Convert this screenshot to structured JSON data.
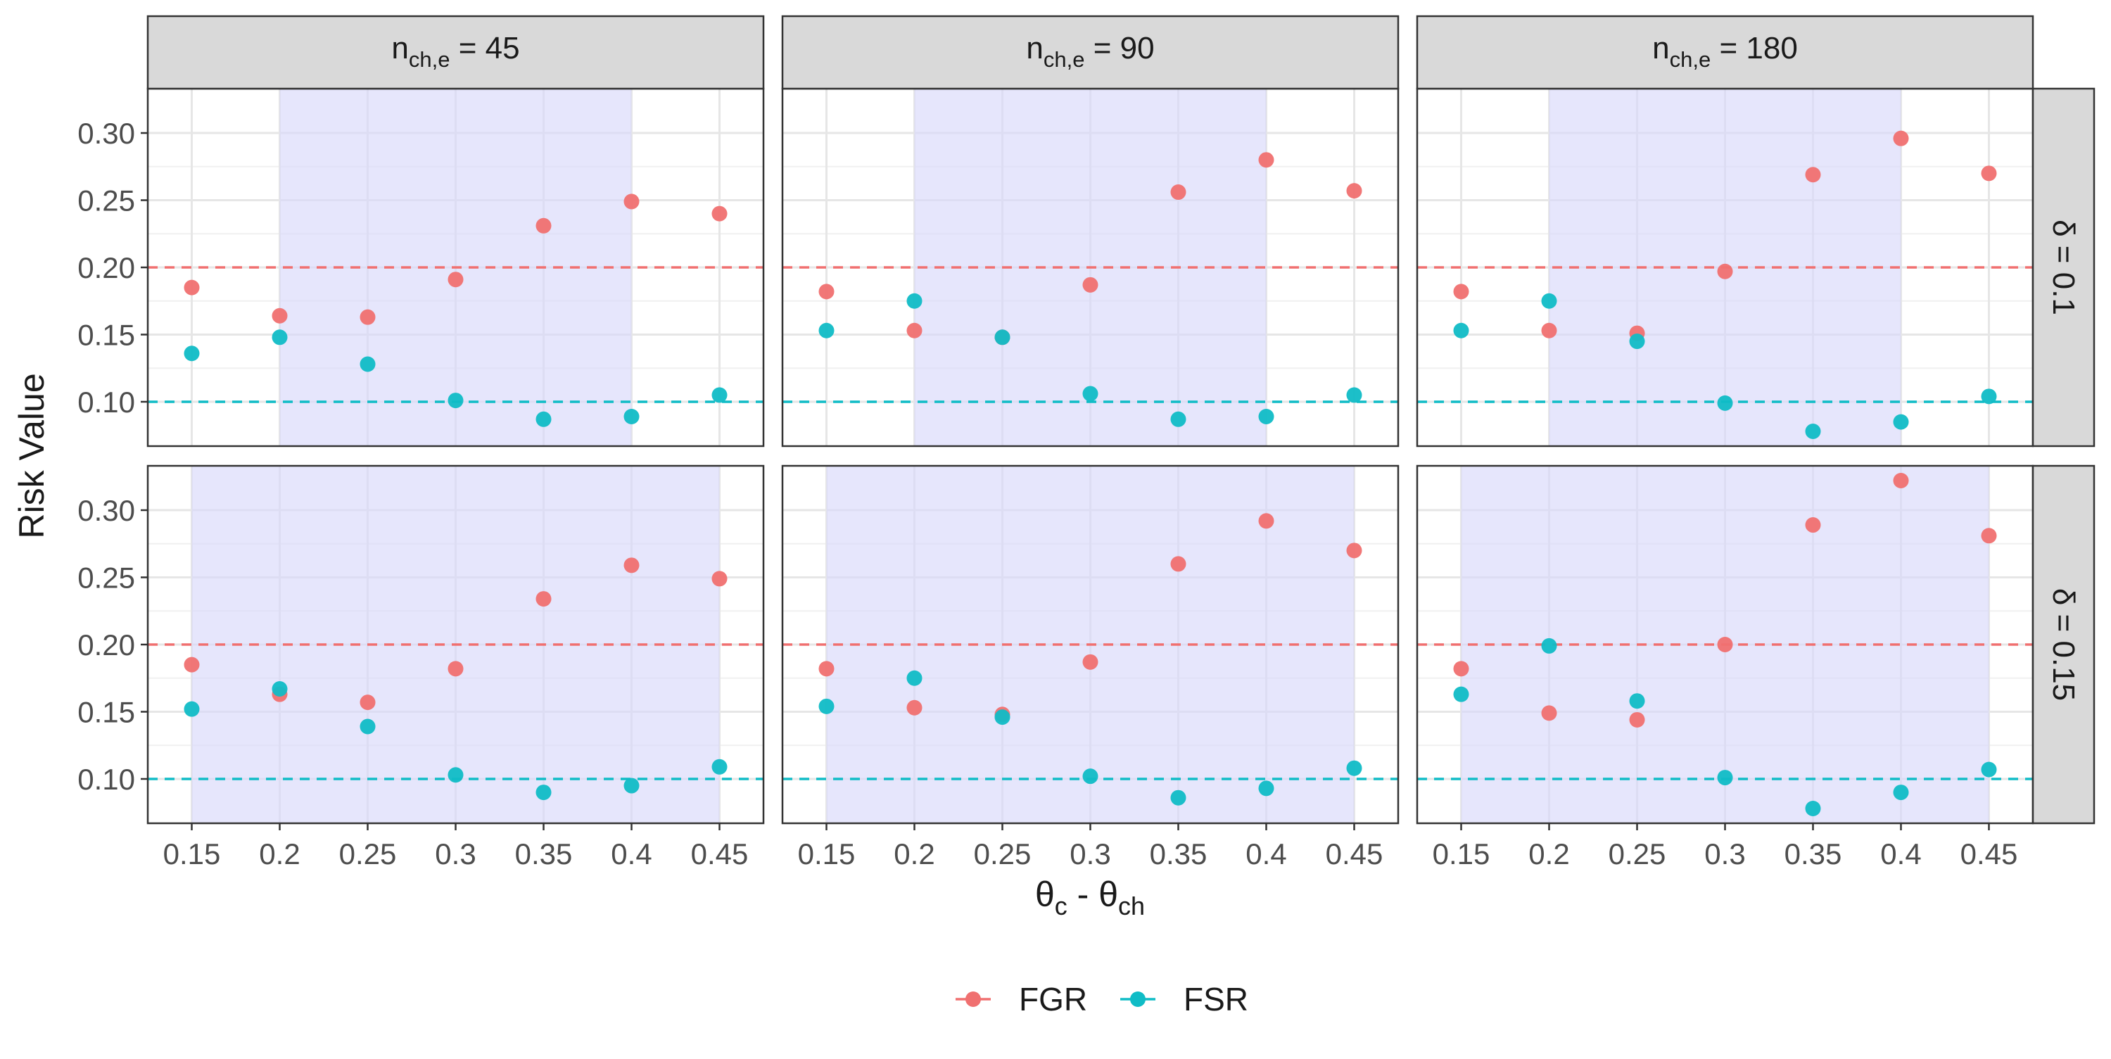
{
  "chart_data": {
    "type": "scatter",
    "ylabel": "Risk Value",
    "xlabel": {
      "main": "θ",
      "sub1": "c",
      "mid": " - θ",
      "sub2": "ch"
    },
    "x_ticks": [
      "0.15",
      "0.2",
      "0.25",
      "0.3",
      "0.35",
      "0.4",
      "0.45"
    ],
    "x_values": [
      0.15,
      0.2,
      0.25,
      0.3,
      0.35,
      0.4,
      0.45
    ],
    "y_ticks": [
      "0.10",
      "0.15",
      "0.20",
      "0.25",
      "0.30"
    ],
    "y_tick_values": [
      0.1,
      0.15,
      0.2,
      0.25,
      0.3
    ],
    "xlim": [
      0.125,
      0.475
    ],
    "ylim": [
      0.067,
      0.333
    ],
    "grid": true,
    "legend_position": "bottom",
    "colors": {
      "FGR": "#F07070",
      "FSR": "#10BCC6",
      "band": "#E3E3FB",
      "strip": "#D9D9D9"
    },
    "legend": [
      {
        "name": "FGR",
        "color": "#F07070"
      },
      {
        "name": "FSR",
        "color": "#10BCC6"
      }
    ],
    "reference_lines": [
      {
        "series": "FGR",
        "y": 0.2
      },
      {
        "series": "FSR",
        "y": 0.1
      }
    ],
    "col_facets": [
      {
        "var": "n",
        "sub": "ch,e",
        "value": "= 45"
      },
      {
        "var": "n",
        "sub": "ch,e",
        "value": "= 90"
      },
      {
        "var": "n",
        "sub": "ch,e",
        "value": "= 180"
      }
    ],
    "row_facets": [
      "δ = 0.1",
      "δ = 0.15"
    ],
    "panels": [
      {
        "row": 0,
        "col": 0,
        "band": [
          0.2,
          0.4
        ],
        "FGR": [
          0.185,
          0.164,
          0.163,
          0.191,
          0.231,
          0.249,
          0.24
        ],
        "FSR": [
          0.136,
          0.148,
          0.128,
          0.101,
          0.087,
          0.089,
          0.105
        ]
      },
      {
        "row": 0,
        "col": 1,
        "band": [
          0.2,
          0.4
        ],
        "FGR": [
          0.182,
          0.153,
          0.148,
          0.187,
          0.256,
          0.28,
          0.257
        ],
        "FSR": [
          0.153,
          0.175,
          0.148,
          0.106,
          0.087,
          0.089,
          0.105
        ]
      },
      {
        "row": 0,
        "col": 2,
        "band": [
          0.2,
          0.4
        ],
        "FGR": [
          0.182,
          0.153,
          0.151,
          0.197,
          0.269,
          0.296,
          0.27
        ],
        "FSR": [
          0.153,
          0.175,
          0.145,
          0.099,
          0.078,
          0.085,
          0.104
        ]
      },
      {
        "row": 1,
        "col": 0,
        "band": [
          0.15,
          0.45
        ],
        "FGR": [
          0.185,
          0.163,
          0.157,
          0.182,
          0.234,
          0.259,
          0.249
        ],
        "FSR": [
          0.152,
          0.167,
          0.139,
          0.103,
          0.09,
          0.095,
          0.109
        ]
      },
      {
        "row": 1,
        "col": 1,
        "band": [
          0.15,
          0.45
        ],
        "FGR": [
          0.182,
          0.153,
          0.148,
          0.187,
          0.26,
          0.292,
          0.27
        ],
        "FSR": [
          0.154,
          0.175,
          0.146,
          0.102,
          0.086,
          0.093,
          0.108
        ]
      },
      {
        "row": 1,
        "col": 2,
        "band": [
          0.15,
          0.45
        ],
        "FGR": [
          0.182,
          0.149,
          0.144,
          0.2,
          0.289,
          0.322,
          0.281
        ],
        "FSR": [
          0.163,
          0.199,
          0.158,
          0.101,
          0.078,
          0.09,
          0.107
        ]
      }
    ]
  }
}
